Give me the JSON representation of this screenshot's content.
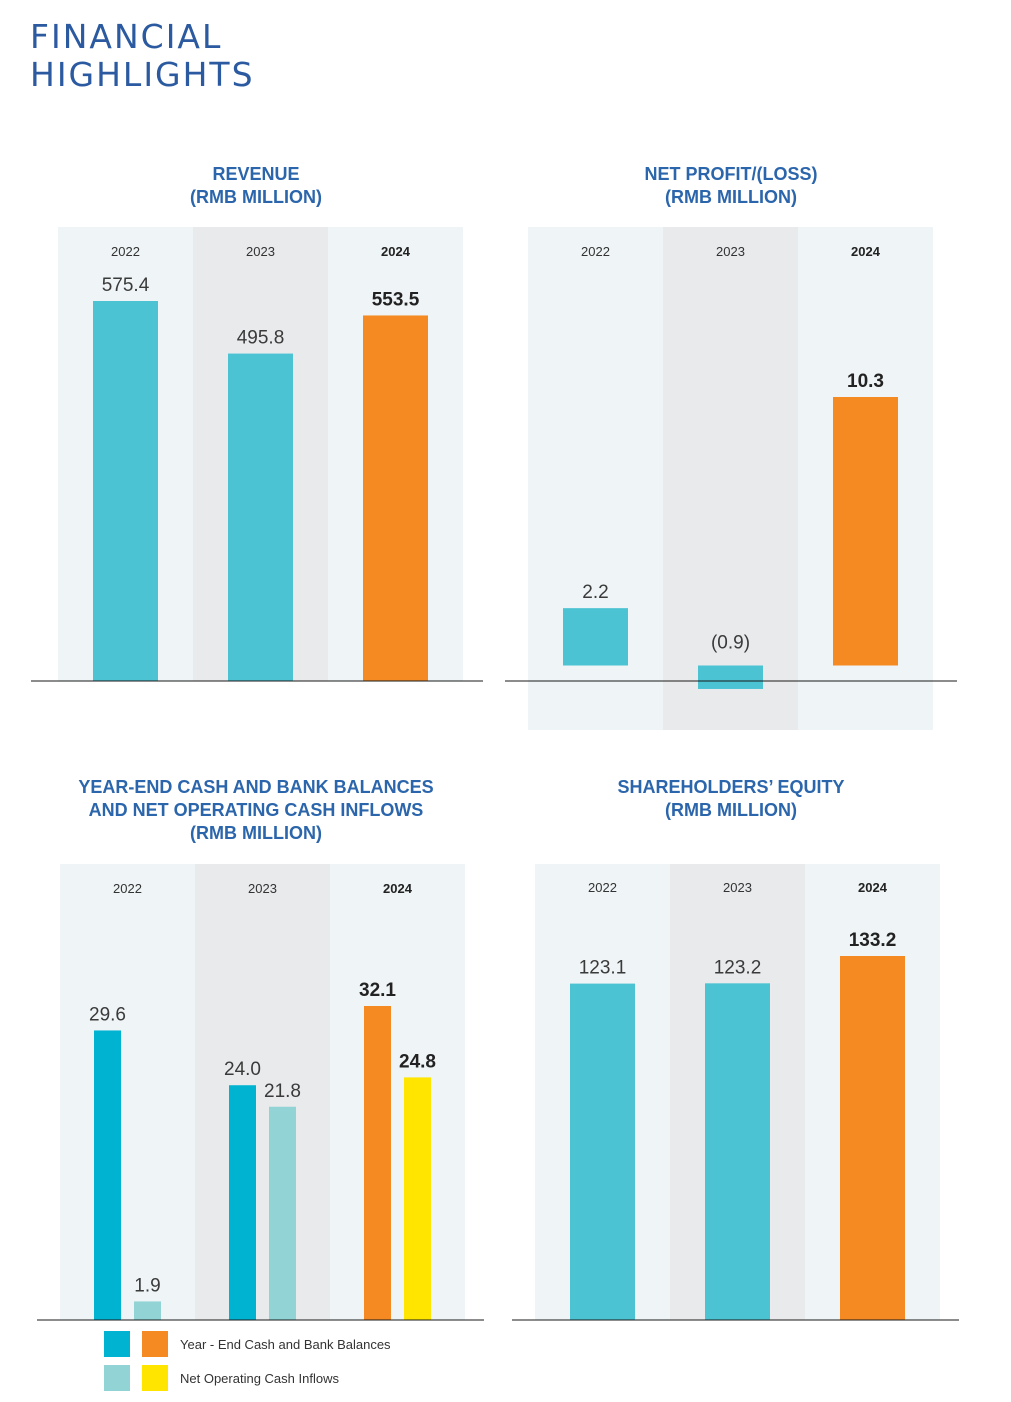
{
  "page_title": [
    "FINANCIAL",
    "HIGHLIGHTS"
  ],
  "colors": {
    "title_blue": "#2b65ab",
    "teal": "#4bc3d3",
    "cyan": "#00b3d1",
    "light_teal": "#92d4d6",
    "orange": "#f58a23",
    "yellow": "#ffe500",
    "panel_light": "#eff4f6",
    "panel_dark": "#e9eaec"
  },
  "legend": {
    "items": [
      {
        "label": "Year - End Cash and Bank Balances",
        "swatches": [
          "#00b3d1",
          "#f58a23"
        ]
      },
      {
        "label": "Net Operating Cash Inflows",
        "swatches": [
          "#92d4d6",
          "#ffe500"
        ]
      }
    ]
  },
  "chart_data": [
    {
      "id": "revenue",
      "type": "bar",
      "title": [
        "REVENUE",
        "(RMB MILLION)"
      ],
      "categories": [
        "2022",
        "2023",
        "2024"
      ],
      "bold_category": "2024",
      "series": [
        {
          "name": "Revenue",
          "values": [
            575.4,
            495.8,
            553.5
          ],
          "labels": [
            "575.4",
            "495.8",
            "553.5"
          ],
          "colors": [
            "#4bc3d3",
            "#4bc3d3",
            "#f58a23"
          ]
        }
      ],
      "ylim": [
        0,
        575.4
      ]
    },
    {
      "id": "net-profit",
      "type": "bar",
      "title": [
        "NET PROFIT/(LOSS)",
        "(RMB MILLION)"
      ],
      "categories": [
        "2022",
        "2023",
        "2024"
      ],
      "bold_category": "2024",
      "series": [
        {
          "name": "Net Profit/(Loss)",
          "values": [
            2.2,
            -0.9,
            10.3
          ],
          "labels": [
            "2.2",
            "(0.9)",
            "10.3"
          ],
          "colors": [
            "#4bc3d3",
            "#4bc3d3",
            "#f58a23"
          ]
        }
      ],
      "ylim": [
        -1.4,
        10.3
      ]
    },
    {
      "id": "cash",
      "type": "bar",
      "title": [
        "YEAR-END CASH AND BANK BALANCES",
        "AND NET OPERATING CASH INFLOWS",
        "(RMB MILLION)"
      ],
      "categories": [
        "2022",
        "2023",
        "2024"
      ],
      "bold_category": "2024",
      "series": [
        {
          "name": "Year - End Cash and Bank Balances",
          "values": [
            29.6,
            24.0,
            32.1
          ],
          "labels": [
            "29.6",
            "24.0",
            "32.1"
          ],
          "colors": [
            "#00b3d1",
            "#00b3d1",
            "#f58a23"
          ]
        },
        {
          "name": "Net Operating Cash Inflows",
          "values": [
            1.9,
            21.8,
            24.8
          ],
          "labels": [
            "1.9",
            "21.8",
            "24.8"
          ],
          "colors": [
            "#92d4d6",
            "#92d4d6",
            "#ffe500"
          ]
        }
      ],
      "ylim": [
        0,
        32.1
      ]
    },
    {
      "id": "equity",
      "type": "bar",
      "title": [
        "SHAREHOLDERS’ EQUITY",
        "(RMB MILLION)"
      ],
      "categories": [
        "2022",
        "2023",
        "2024"
      ],
      "bold_category": "2024",
      "series": [
        {
          "name": "Shareholders' Equity",
          "values": [
            123.1,
            123.2,
            133.2
          ],
          "labels": [
            "123.1",
            "123.2",
            "133.2"
          ],
          "colors": [
            "#4bc3d3",
            "#4bc3d3",
            "#f58a23"
          ]
        }
      ],
      "ylim": [
        0,
        133.2
      ]
    }
  ]
}
